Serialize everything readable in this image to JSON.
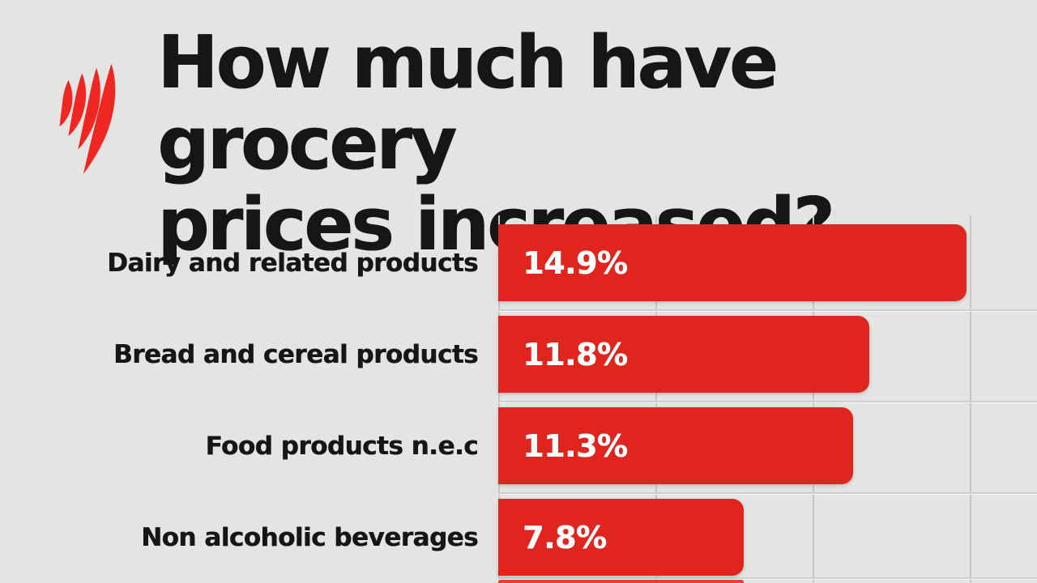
{
  "brand": {
    "name": "SBS",
    "logo_icon": "sbs-mercator-flame-logo",
    "logo_color": "#ee2722"
  },
  "title": {
    "line1": "How much have grocery",
    "line2": "prices increased?"
  },
  "chart_data": {
    "type": "bar",
    "orientation": "horizontal",
    "title": "How much have grocery prices increased?",
    "categories": [
      "Dairy and related products",
      "Bread and cereal products",
      "Food products n.e.c",
      "Non alcoholic beverages"
    ],
    "values": [
      14.9,
      11.8,
      11.3,
      7.8
    ],
    "value_labels": [
      "14.9%",
      "11.8%",
      "11.3%",
      "7.8%"
    ],
    "unit": "%",
    "xlim": [
      0,
      17.1
    ],
    "gridline_interval": 5,
    "grid": true,
    "legend": false,
    "value_labels_inside_bars": true,
    "bar_color": "#e0251e",
    "value_label_color": "#ffffff",
    "partial_fifth_bar": {
      "visible": true,
      "cut_off_at_bottom": true,
      "label_visible": false,
      "approx_value": 7.8
    }
  },
  "colors": {
    "background": "#e4e4e3",
    "text": "#161616",
    "bar_red": "#e0251e",
    "logo_red": "#ee2722",
    "gridline": "#c8c7c6",
    "bar_value_text": "#ffffff"
  }
}
